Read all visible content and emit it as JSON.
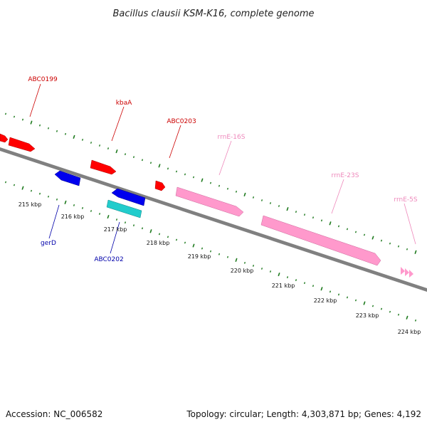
{
  "title": "Bacillus clausii KSM-K16, complete genome",
  "footer": {
    "accession": "Accession: NC_006582",
    "summary": "Topology: circular; Length: 4,303,871 bp; Genes: 4,192"
  },
  "colors": {
    "backbone": "#808080",
    "tick": "#1e7a1e",
    "forward_gene": "#ff0000",
    "reverse_gene": "#0000ee",
    "rrna": "#ff99cc",
    "other_gene": "#22cccc",
    "forward_label": "#cc0000",
    "reverse_label": "#0000aa",
    "rrna_label": "#ee88bb"
  },
  "scale": {
    "unit": "kbp",
    "labels": [
      "215 kbp",
      "216 kbp",
      "217 kbp",
      "218 kbp",
      "219 kbp",
      "220 kbp",
      "221 kbp",
      "222 kbp",
      "223 kbp",
      "224 kbp"
    ]
  },
  "features": [
    {
      "label": "ABC0199",
      "strand": "forward",
      "type": "gene"
    },
    {
      "label": "kbaA",
      "strand": "forward",
      "type": "gene"
    },
    {
      "label": "ABC0203",
      "strand": "forward",
      "type": "gene"
    },
    {
      "label": "rrnE-16S",
      "strand": "forward",
      "type": "rRNA"
    },
    {
      "label": "rrnE-23S",
      "strand": "forward",
      "type": "rRNA"
    },
    {
      "label": "rrnE-5S",
      "strand": "forward",
      "type": "rRNA"
    },
    {
      "label": "gerD",
      "strand": "reverse",
      "type": "gene"
    },
    {
      "label": "ABC0202",
      "strand": "reverse",
      "type": "gene"
    }
  ]
}
